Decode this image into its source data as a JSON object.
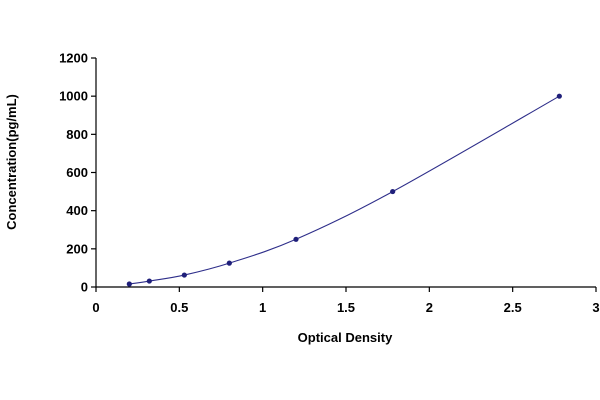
{
  "chart_data": {
    "type": "scatter",
    "title": "",
    "xlabel": "Optical Density",
    "ylabel": "Concentration(pg/mL)",
    "xlim": [
      0,
      3
    ],
    "ylim": [
      0,
      1200
    ],
    "x_ticks": [
      "0",
      "0.5",
      "1",
      "1.5",
      "2",
      "2.5",
      "3"
    ],
    "y_ticks": [
      "0",
      "200",
      "400",
      "600",
      "800",
      "1000",
      "1200"
    ],
    "grid": false,
    "legend": "none",
    "series": [
      {
        "points": [
          {
            "x": 0.2,
            "y": 15.6
          },
          {
            "x": 0.32,
            "y": 31.2
          },
          {
            "x": 0.53,
            "y": 62.5
          },
          {
            "x": 0.8,
            "y": 125
          },
          {
            "x": 1.2,
            "y": 250
          },
          {
            "x": 1.78,
            "y": 500
          },
          {
            "x": 2.78,
            "y": 1000
          }
        ],
        "fit": "smooth curve",
        "color": "#2e2e8a"
      }
    ]
  }
}
